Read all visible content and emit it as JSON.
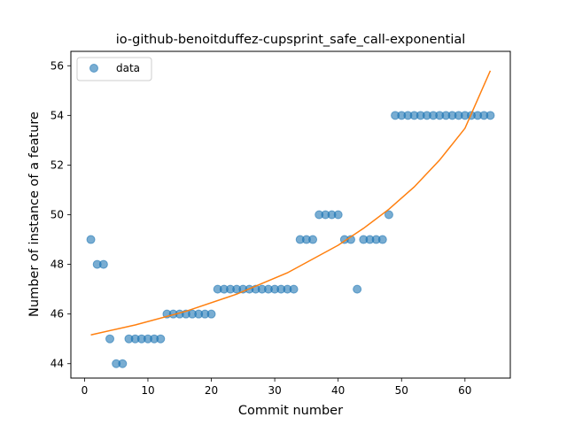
{
  "chart_data": {
    "type": "scatter",
    "title": "io-github-benoitduffez-cupsprint_safe_call-exponential",
    "xlabel": "Commit number",
    "ylabel": "Number of instance of a feature",
    "xlim": [
      -2.15,
      67.15
    ],
    "ylim": [
      43.42,
      56.58
    ],
    "xticks": [
      0,
      10,
      20,
      30,
      40,
      50,
      60
    ],
    "yticks": [
      44,
      46,
      48,
      50,
      52,
      54,
      56
    ],
    "grid": false,
    "legend": {
      "location": "top-left",
      "entries": [
        "data"
      ]
    },
    "series": [
      {
        "name": "data",
        "kind": "scatter",
        "color": "#1f77b4",
        "x": [
          1,
          2,
          3,
          4,
          5,
          6,
          7,
          8,
          9,
          10,
          11,
          12,
          13,
          14,
          15,
          16,
          17,
          18,
          19,
          20,
          21,
          22,
          23,
          24,
          25,
          26,
          27,
          28,
          29,
          30,
          31,
          32,
          33,
          34,
          35,
          36,
          37,
          38,
          39,
          40,
          41,
          42,
          43,
          44,
          45,
          46,
          47,
          48,
          49,
          50,
          51,
          52,
          53,
          54,
          55,
          56,
          57,
          58,
          59,
          60,
          61,
          62,
          63,
          64
        ],
        "y": [
          49,
          48,
          48,
          45,
          44,
          44,
          45,
          45,
          45,
          45,
          45,
          45,
          46,
          46,
          46,
          46,
          46,
          46,
          46,
          46,
          47,
          47,
          47,
          47,
          47,
          47,
          47,
          47,
          47,
          47,
          47,
          47,
          47,
          49,
          49,
          49,
          50,
          50,
          50,
          50,
          49,
          49,
          47,
          49,
          49,
          49,
          49,
          50,
          54,
          54,
          54,
          54,
          54,
          54,
          54,
          54,
          54,
          54,
          54,
          54,
          54,
          54,
          54,
          54
        ]
      },
      {
        "kind": "line",
        "color": "#ff7f0e",
        "x": [
          1,
          8,
          16,
          24,
          32,
          40,
          44,
          48,
          52,
          56,
          60,
          64
        ],
        "y": [
          45.16,
          45.56,
          46.11,
          46.8,
          47.66,
          48.77,
          49.45,
          50.22,
          51.12,
          52.2,
          53.48,
          55.8
        ]
      }
    ]
  }
}
